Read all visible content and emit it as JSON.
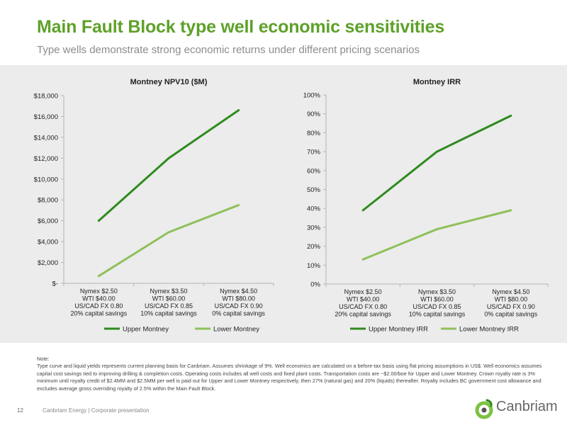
{
  "slide": {
    "title": "Main Fault Block type well economic sensitivities",
    "subtitle": "Type wells demonstrate strong economic returns under different pricing scenarios",
    "note_label": "Note:",
    "note_text": "Type curve and liquid yields represents current planning basis for Canbriam. Assumes shrinkage of 9%. Well economics are calculated on a before-tax basis using flat pricing assumptions in US$. Well economics assumes capital cost savings tied to improving drilling & completion costs. Operating costs includes all well costs and fixed plant costs. Transportation costs are ~$2.00/boe for Upper and Lower Montney. Crown royalty rate is 3% minimum until royalty credit of $2.4MM and $2.5MM per well is paid out for Upper and Lower Montney respectively, then 27% (natural gas) and 20% (liquids) thereafter. Royalty includes BC government cost allowance and excludes average gross overriding royalty of 2.5% within the Main Fault Block.",
    "page_number": "12",
    "footer": "Canbriam Energy  |  Corporate presentation",
    "logo_text": "Canbriam"
  },
  "colors": {
    "title": "#5ea12a",
    "upper": "#2e8b1e",
    "lower": "#8fc05a",
    "band": "#ececec"
  },
  "chart_data": [
    {
      "type": "line",
      "title": "Montney NPV10 ($M)",
      "categories": [
        [
          "Nymex $2.50",
          "WTI $40.00",
          "US/CAD FX 0.80",
          "20% capital savings"
        ],
        [
          "Nymex $3.50",
          "WTI $60.00",
          "US/CAD FX 0.85",
          "10% capital savings"
        ],
        [
          "Nymex $4.50",
          "WTI $80.00",
          "US/CAD FX 0.90",
          "0% capital savings"
        ]
      ],
      "series": [
        {
          "name": "Upper Montney",
          "values": [
            6000,
            12000,
            16600
          ]
        },
        {
          "name": "Lower Montney",
          "values": [
            700,
            4900,
            7500
          ]
        }
      ],
      "ylim": [
        0,
        18000
      ],
      "yticks": [
        0,
        2000,
        4000,
        6000,
        8000,
        10000,
        12000,
        14000,
        16000,
        18000
      ],
      "ytick_labels": [
        "$-",
        "$2,000",
        "$4,000",
        "$6,000",
        "$8,000",
        "$10,000",
        "$12,000",
        "$14,000",
        "$16,000",
        "$18,000"
      ],
      "grid": false,
      "legend": "bottom"
    },
    {
      "type": "line",
      "title": "Montney IRR",
      "categories": [
        [
          "Nymex $2.50",
          "WTI $40.00",
          "US/CAD FX 0.80",
          "20% capital savings"
        ],
        [
          "Nymex $3.50",
          "WTI $60.00",
          "US/CAD FX 0.85",
          "10% capital savings"
        ],
        [
          "Nymex $4.50",
          "WTI $80.00",
          "US/CAD FX 0.90",
          "0% capital savings"
        ]
      ],
      "series": [
        {
          "name": "Upper Montney IRR",
          "values": [
            39,
            70,
            89
          ]
        },
        {
          "name": "Lower Montney IRR",
          "values": [
            13,
            29,
            39
          ]
        }
      ],
      "ylim": [
        0,
        100
      ],
      "yticks": [
        0,
        10,
        20,
        30,
        40,
        50,
        60,
        70,
        80,
        90,
        100
      ],
      "ytick_labels": [
        "0%",
        "10%",
        "20%",
        "30%",
        "40%",
        "50%",
        "60%",
        "70%",
        "80%",
        "90%",
        "100%"
      ],
      "grid": false,
      "legend": "bottom"
    }
  ]
}
